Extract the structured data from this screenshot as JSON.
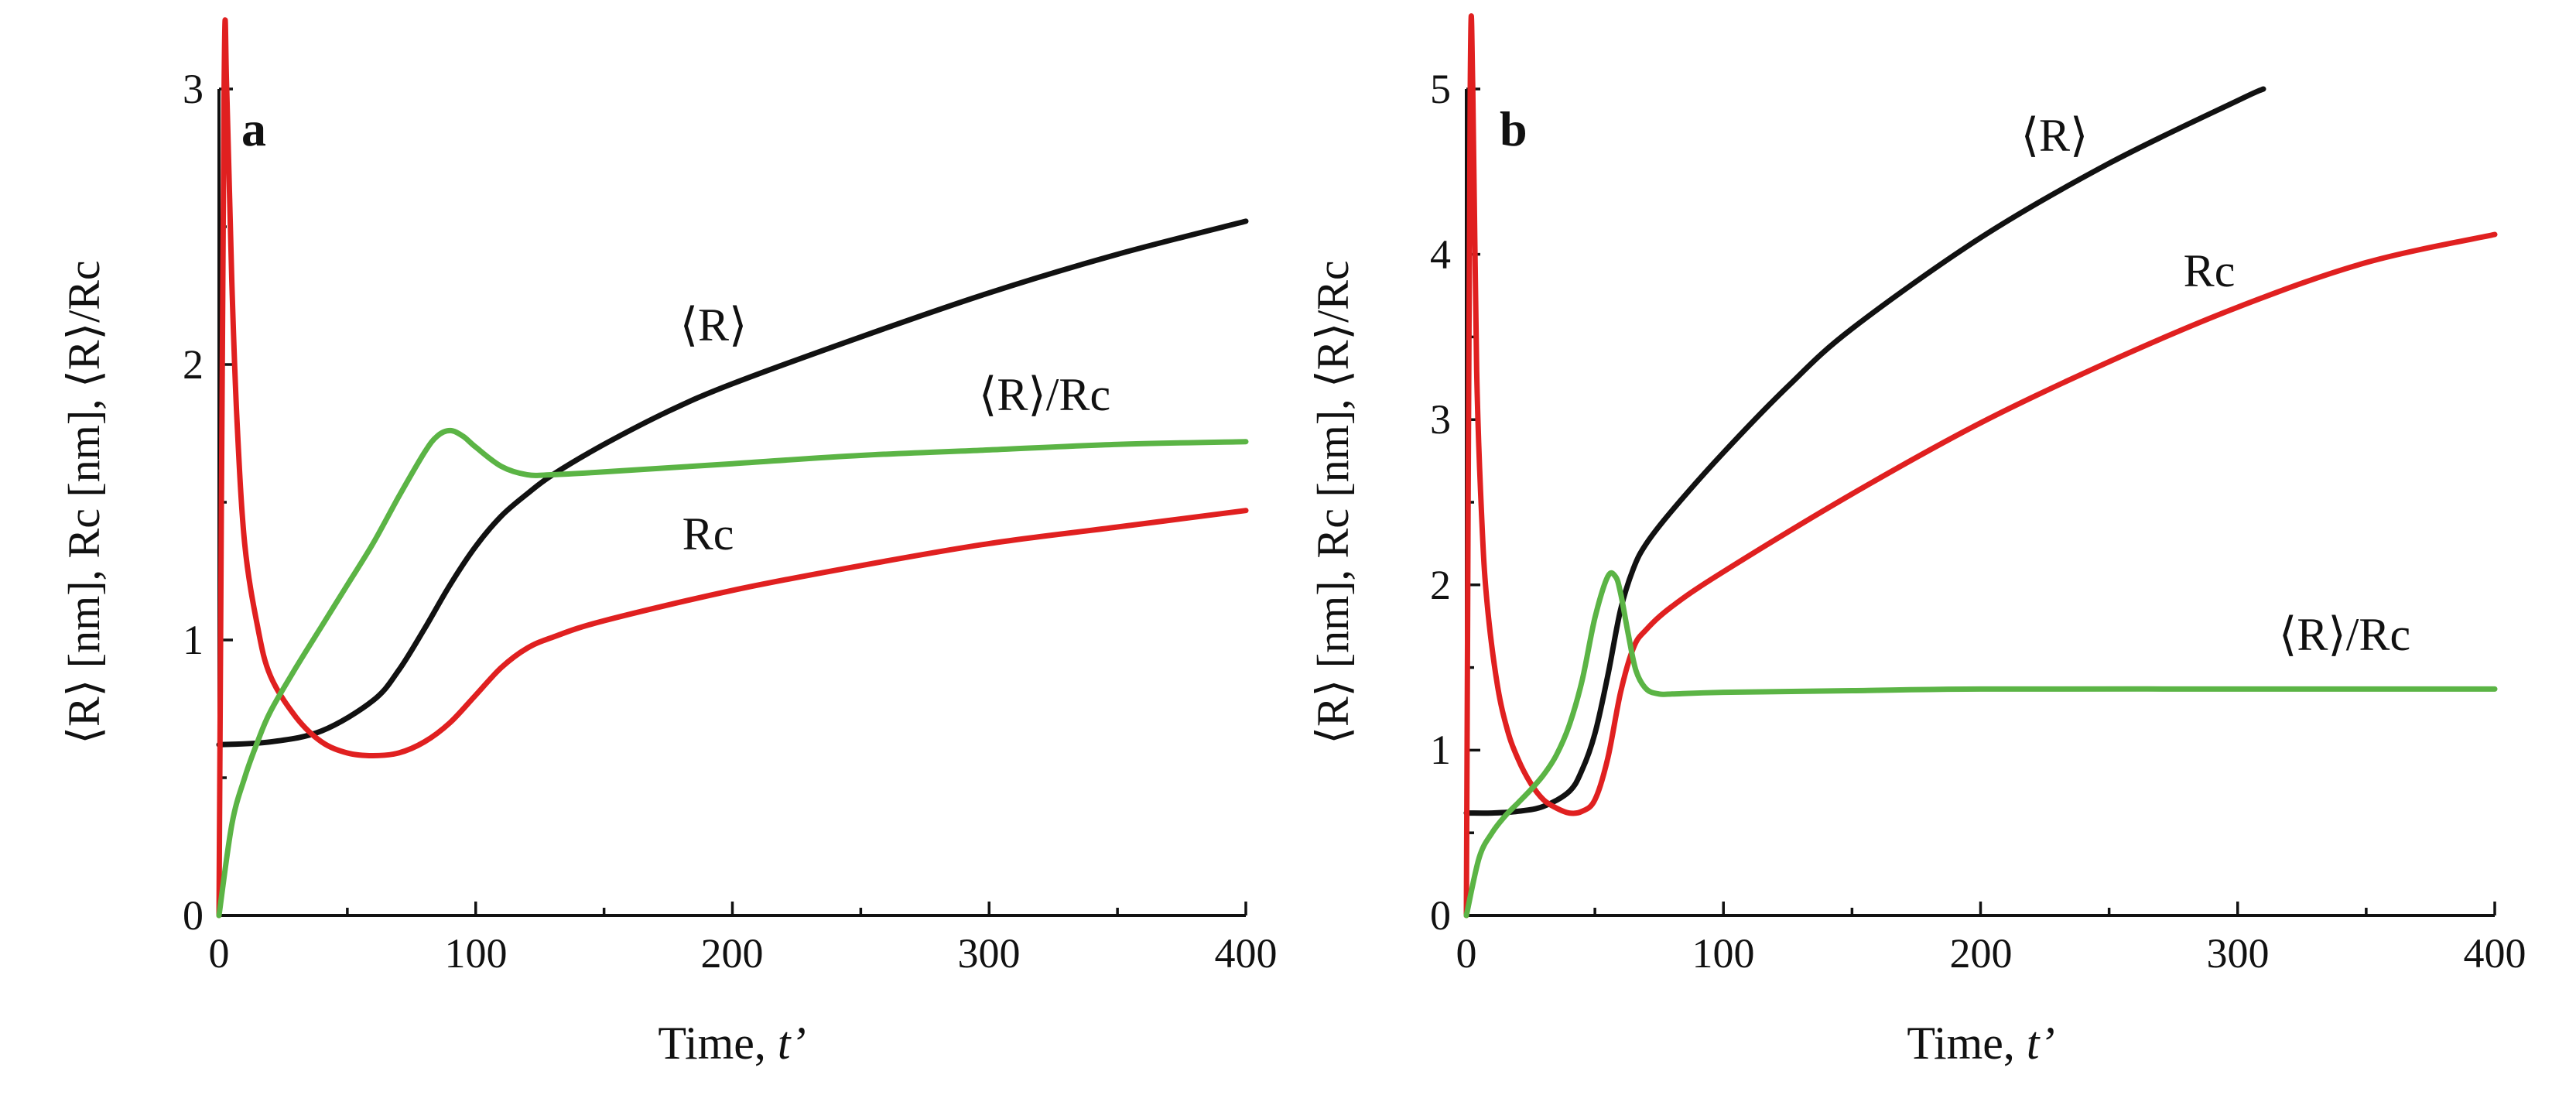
{
  "chart_data": [
    {
      "type": "line",
      "panel": "a",
      "xlabel_main": "Time, ",
      "xlabel_var": "t’",
      "ylabel": "⟨R⟩ [nm], Rc [nm], ⟨R⟩/Rc",
      "xlim": [
        0,
        400
      ],
      "ylim": [
        0,
        3
      ],
      "xticks": [
        0,
        100,
        200,
        300,
        400
      ],
      "yticks": [
        0,
        1,
        2,
        3
      ],
      "xtick_labels": [
        "0",
        "100",
        "200",
        "300",
        "400"
      ],
      "ytick_labels": [
        "0",
        "1",
        "2",
        "3"
      ],
      "series": [
        {
          "name": "⟨R⟩",
          "label_text": "⟨R⟩",
          "color": "#111111",
          "x": [
            0,
            20,
            40,
            60,
            70,
            80,
            90,
            100,
            110,
            120,
            130,
            150,
            175,
            200,
            250,
            300,
            350,
            400
          ],
          "y": [
            0.62,
            0.63,
            0.67,
            0.78,
            0.89,
            1.04,
            1.2,
            1.34,
            1.45,
            1.53,
            1.6,
            1.71,
            1.83,
            1.93,
            2.1,
            2.26,
            2.4,
            2.52
          ]
        },
        {
          "name": "Rc",
          "label_text": "Rc",
          "color": "#e02020",
          "x": [
            0,
            2,
            3,
            5,
            7,
            10,
            15,
            20,
            30,
            40,
            50,
            60,
            70,
            80,
            90,
            100,
            110,
            120,
            130,
            150,
            200,
            250,
            300,
            350,
            400
          ],
          "y": [
            0,
            3,
            3,
            2.3,
            1.8,
            1.35,
            1.05,
            0.87,
            0.72,
            0.63,
            0.59,
            0.58,
            0.59,
            0.63,
            0.7,
            0.8,
            0.9,
            0.97,
            1.01,
            1.07,
            1.18,
            1.27,
            1.35,
            1.41,
            1.47
          ]
        },
        {
          "name": "⟨R⟩/Rc",
          "label_text": "⟨R⟩/Rc",
          "color": "#5bb445",
          "x": [
            0,
            5,
            10,
            15,
            20,
            30,
            40,
            50,
            60,
            70,
            80,
            85,
            90,
            95,
            100,
            110,
            120,
            130,
            150,
            200,
            250,
            300,
            350,
            400
          ],
          "y": [
            0,
            0.33,
            0.5,
            0.63,
            0.74,
            0.9,
            1.05,
            1.2,
            1.35,
            1.52,
            1.68,
            1.74,
            1.76,
            1.74,
            1.7,
            1.63,
            1.6,
            1.6,
            1.61,
            1.64,
            1.67,
            1.69,
            1.71,
            1.72
          ]
        }
      ]
    },
    {
      "type": "line",
      "panel": "b",
      "xlabel_main": "Time, ",
      "xlabel_var": "t’",
      "ylabel": "⟨R⟩ [nm], Rc [nm], ⟨R⟩/Rc",
      "xlim": [
        0,
        400
      ],
      "ylim": [
        0,
        5
      ],
      "xticks": [
        0,
        100,
        200,
        300,
        400
      ],
      "yticks": [
        0,
        1,
        2,
        3,
        4,
        5
      ],
      "xtick_labels": [
        "0",
        "100",
        "200",
        "300",
        "400"
      ],
      "ytick_labels": [
        "0",
        "1",
        "2",
        "3",
        "4",
        "5"
      ],
      "series": [
        {
          "name": "⟨R⟩",
          "label_text": "⟨R⟩",
          "color": "#111111",
          "x": [
            0,
            10,
            20,
            30,
            40,
            45,
            50,
            55,
            60,
            65,
            70,
            80,
            100,
            125,
            150,
            200,
            250,
            300,
            310
          ],
          "y": [
            0.62,
            0.62,
            0.63,
            0.66,
            0.75,
            0.88,
            1.1,
            1.45,
            1.85,
            2.1,
            2.25,
            2.45,
            2.8,
            3.2,
            3.55,
            4.1,
            4.55,
            4.93,
            5.0
          ]
        },
        {
          "name": "Rc",
          "label_text": "Rc",
          "color": "#e02020",
          "x": [
            0,
            1.5,
            2.5,
            4,
            6,
            8,
            12,
            16,
            20,
            25,
            30,
            35,
            40,
            45,
            50,
            55,
            60,
            65,
            70,
            80,
            100,
            150,
            200,
            250,
            300,
            350,
            400
          ],
          "y": [
            0,
            5,
            5,
            3.3,
            2.4,
            1.9,
            1.4,
            1.12,
            0.95,
            0.8,
            0.7,
            0.65,
            0.62,
            0.63,
            0.7,
            0.95,
            1.35,
            1.62,
            1.73,
            1.87,
            2.08,
            2.55,
            2.98,
            3.35,
            3.68,
            3.95,
            4.12
          ]
        },
        {
          "name": "⟨R⟩/Rc",
          "label_text": "⟨R⟩/Rc",
          "color": "#5bb445",
          "x": [
            0,
            5,
            10,
            15,
            20,
            25,
            30,
            35,
            40,
            45,
            50,
            55,
            58,
            60,
            63,
            66,
            70,
            75,
            80,
            100,
            150,
            200,
            300,
            400
          ],
          "y": [
            0,
            0.35,
            0.5,
            0.6,
            0.68,
            0.76,
            0.85,
            0.97,
            1.15,
            1.42,
            1.8,
            2.05,
            2.05,
            1.95,
            1.7,
            1.48,
            1.37,
            1.34,
            1.34,
            1.35,
            1.36,
            1.37,
            1.37,
            1.37
          ]
        }
      ]
    }
  ]
}
